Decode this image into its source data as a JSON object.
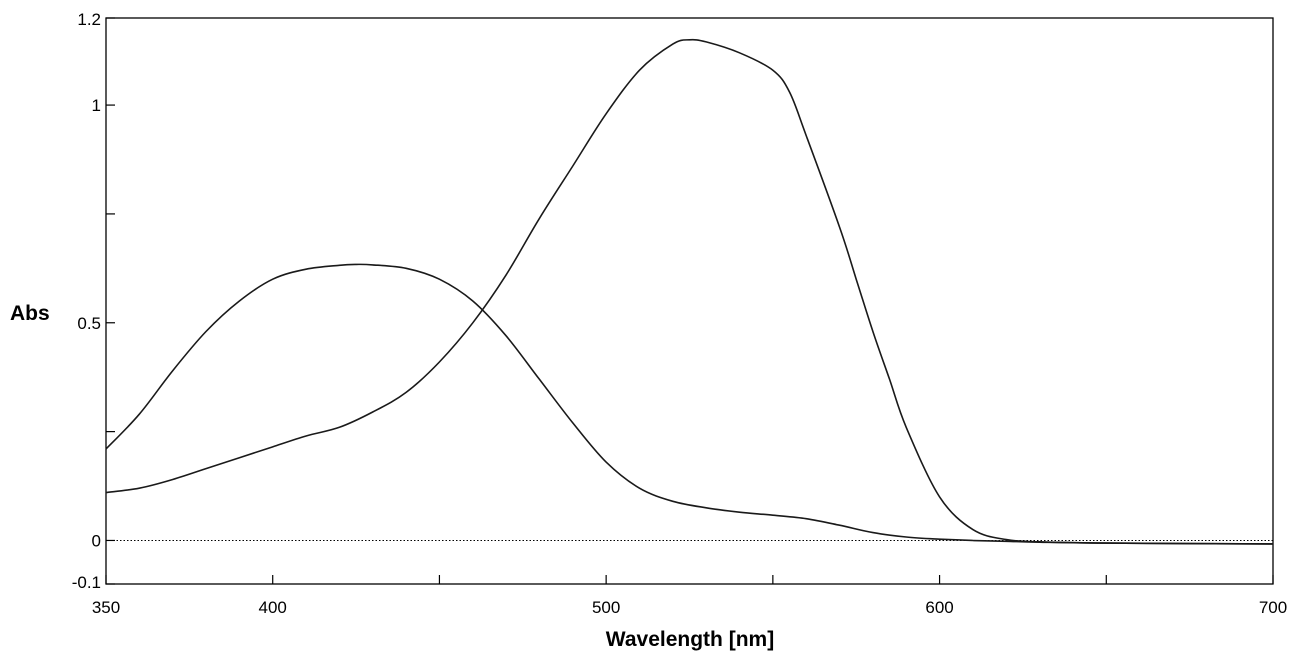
{
  "chart_data": {
    "type": "line",
    "xlabel": "Wavelength [nm]",
    "ylabel": "Abs",
    "xlim": [
      350,
      700
    ],
    "ylim": [
      -0.1,
      1.2
    ],
    "x_tick_labels": [
      "350",
      "400",
      "500",
      "600",
      "700"
    ],
    "y_tick_labels": [
      "-0.1",
      "0",
      "0.5",
      "1",
      "1.2"
    ],
    "x_ticks": [
      350,
      400,
      450,
      500,
      550,
      600,
      650,
      700
    ],
    "y_ticks": [
      -0.1,
      0,
      0.25,
      0.5,
      0.75,
      1,
      1.2
    ],
    "grid": false,
    "legend": "none",
    "baseline": {
      "y": 0,
      "style": "dotted"
    },
    "line_color": "#1a1a1a",
    "series": [
      {
        "x": [
          350,
          360,
          370,
          380,
          390,
          400,
          410,
          420,
          425,
          430,
          440,
          450,
          460,
          470,
          480,
          490,
          500,
          510,
          520,
          530,
          540,
          550,
          560,
          570,
          580,
          590,
          600,
          610,
          620,
          630,
          650,
          700
        ],
        "values": [
          0.21,
          0.29,
          0.39,
          0.48,
          0.55,
          0.6,
          0.623,
          0.632,
          0.634,
          0.633,
          0.625,
          0.6,
          0.55,
          0.47,
          0.37,
          0.27,
          0.18,
          0.12,
          0.09,
          0.075,
          0.065,
          0.058,
          0.05,
          0.035,
          0.018,
          0.008,
          0.003,
          0.0,
          -0.002,
          -0.004,
          -0.006,
          -0.008
        ]
      },
      {
        "x": [
          350,
          360,
          370,
          380,
          390,
          400,
          410,
          420,
          430,
          440,
          450,
          460,
          470,
          480,
          490,
          500,
          510,
          520,
          525,
          530,
          540,
          550,
          555,
          560,
          570,
          575,
          580,
          585,
          590,
          600,
          610,
          620,
          630,
          650,
          700
        ],
        "values": [
          0.11,
          0.12,
          0.14,
          0.165,
          0.19,
          0.215,
          0.24,
          0.26,
          0.295,
          0.34,
          0.41,
          0.5,
          0.61,
          0.74,
          0.86,
          0.98,
          1.08,
          1.14,
          1.15,
          1.145,
          1.12,
          1.08,
          1.03,
          0.93,
          0.72,
          0.6,
          0.48,
          0.37,
          0.26,
          0.1,
          0.025,
          0.002,
          -0.003,
          -0.006,
          -0.008
        ]
      }
    ]
  }
}
